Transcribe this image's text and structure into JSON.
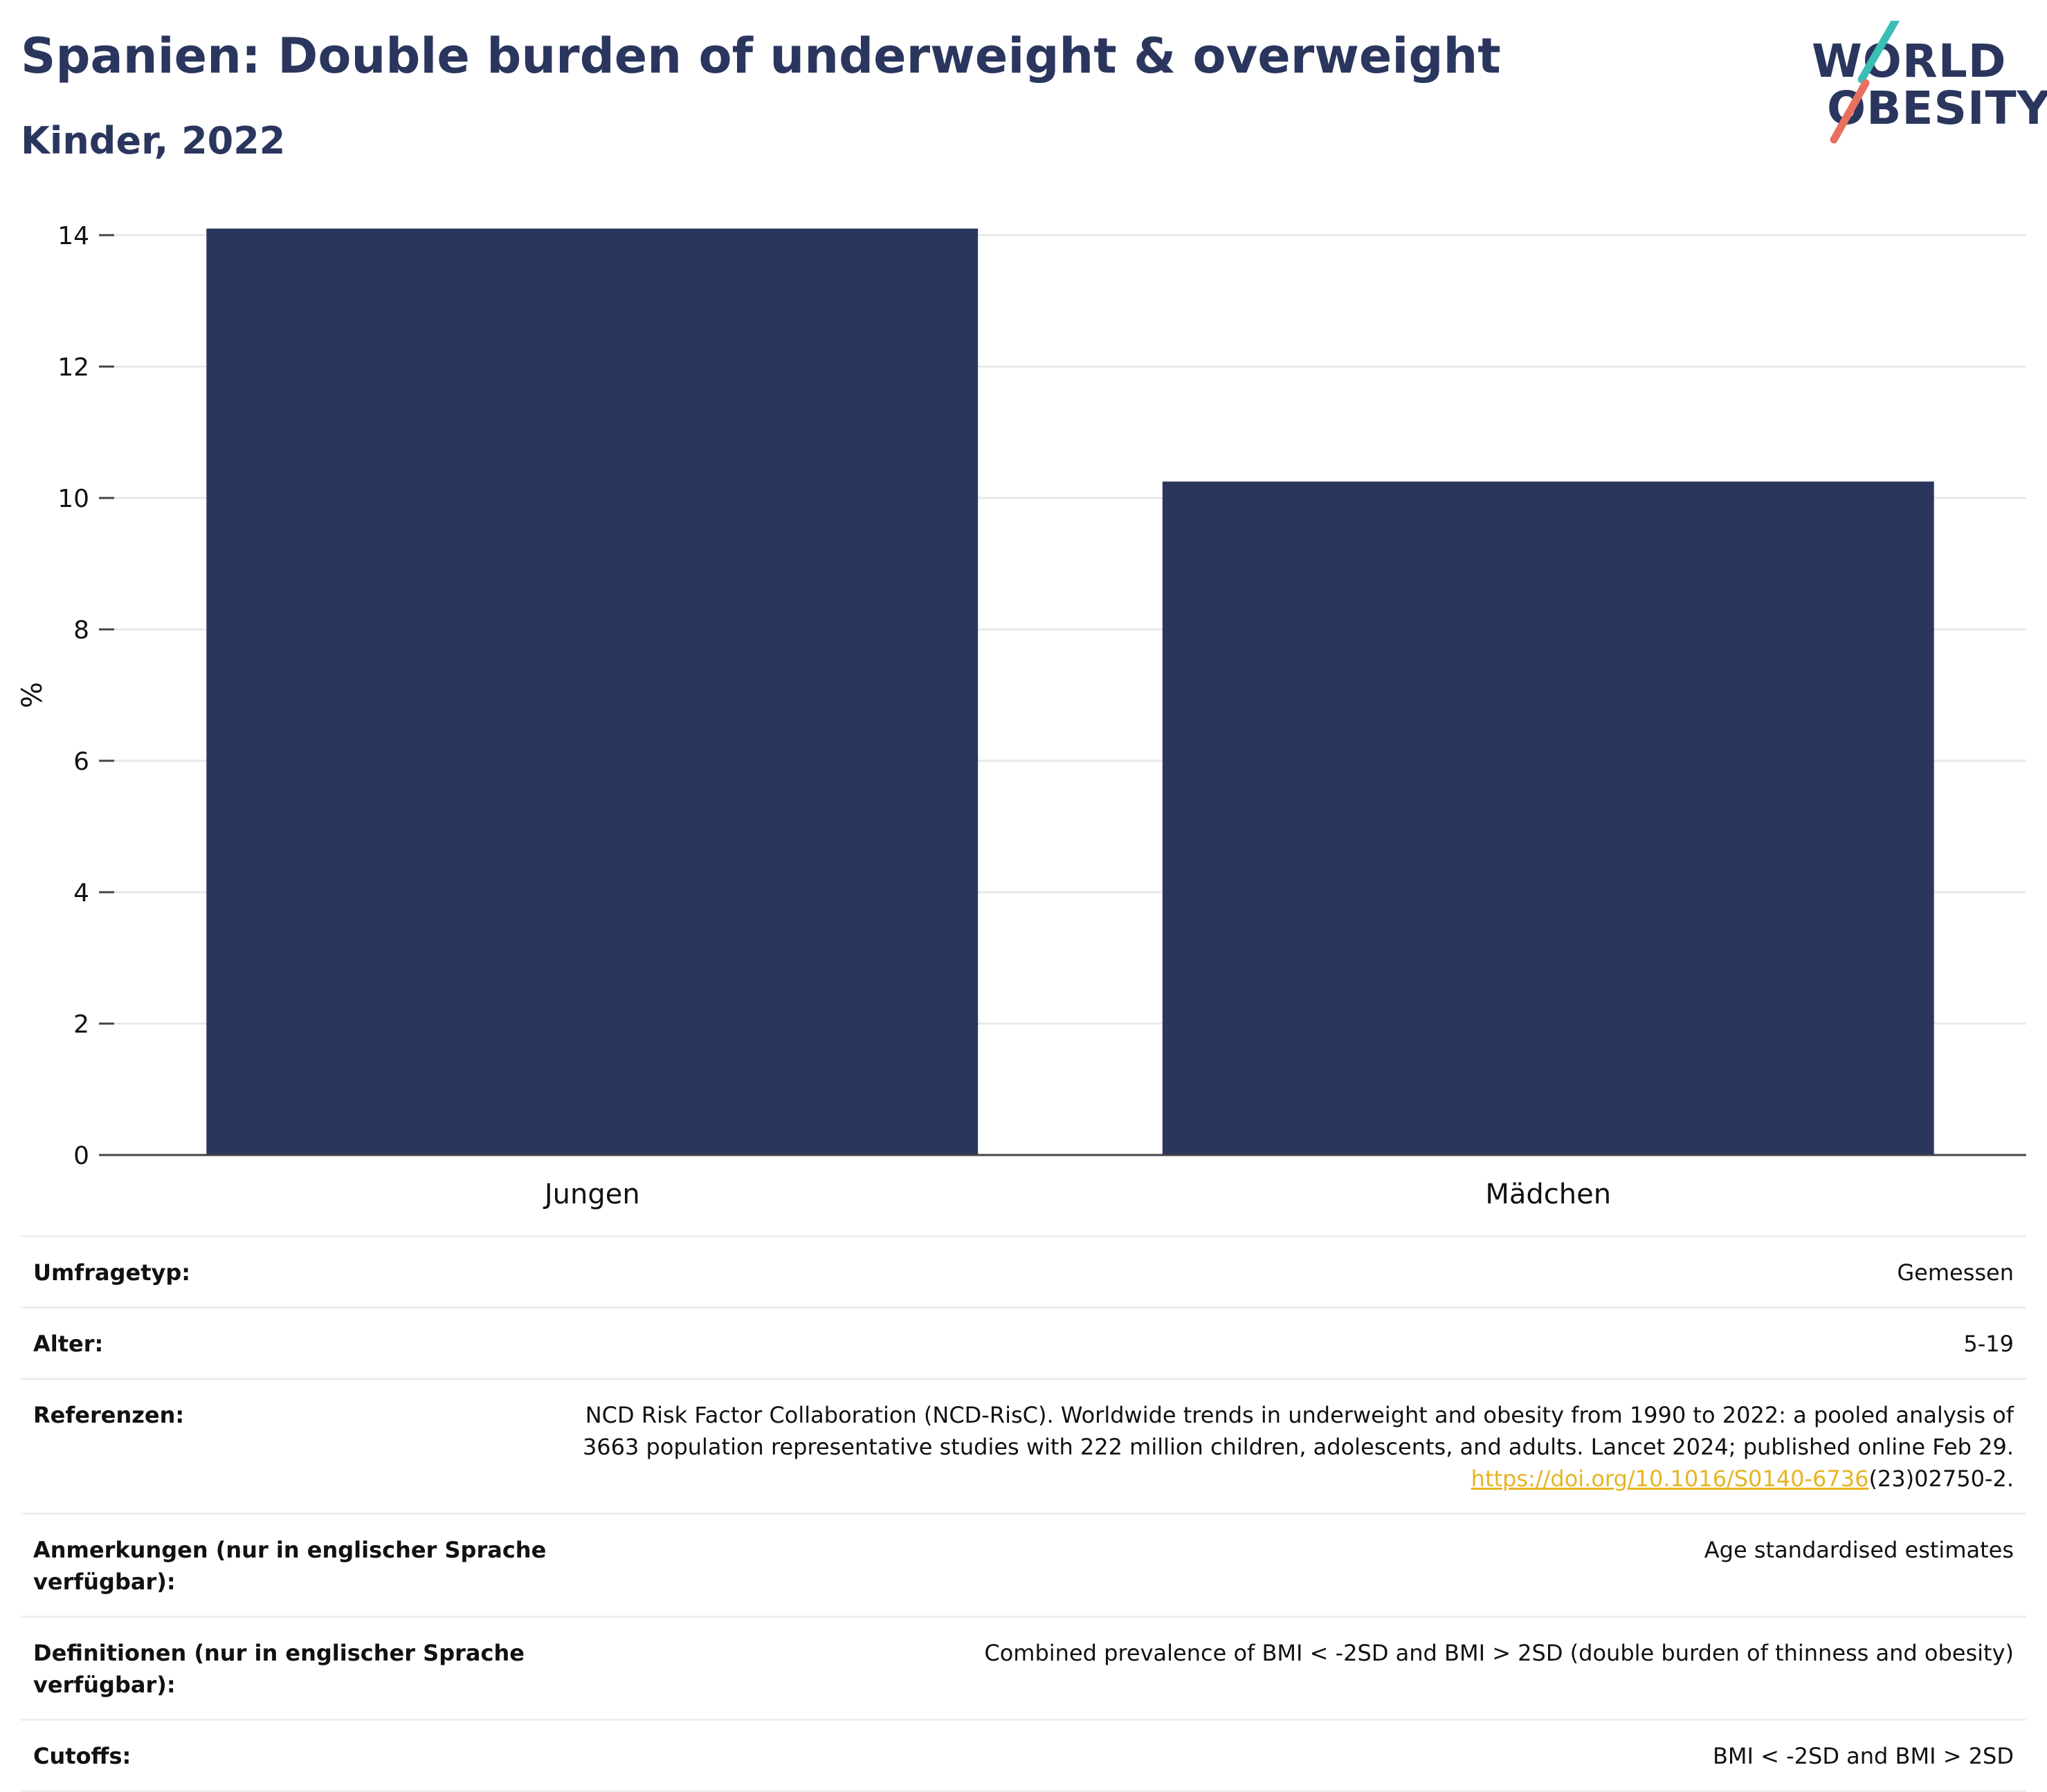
{
  "header": {
    "title": "Spanien: Double burden of underweight & overweight",
    "subtitle": "Kinder, 2022"
  },
  "logo": {
    "line1": "WORLD",
    "line2": "OBESITY",
    "colors": {
      "text": "#2b365e",
      "teal": "#3bbfb5",
      "coral": "#e8705f"
    }
  },
  "chart_data": {
    "type": "bar",
    "categories": [
      "Jungen",
      "Mädchen"
    ],
    "values": [
      14.1,
      10.25
    ],
    "title": "",
    "xlabel": "",
    "ylabel": "%",
    "ylim": [
      0,
      14
    ],
    "yticks": [
      0,
      2,
      4,
      6,
      8,
      10,
      12,
      14
    ],
    "grid": true,
    "bar_color": "#2b365e"
  },
  "meta": {
    "survey": {
      "label": "Umfragetyp:",
      "value": "Gemessen"
    },
    "age": {
      "label": "Alter:",
      "value": "5-19"
    },
    "references": {
      "label": "Referenzen:",
      "line1": "NCD Risk Factor Collaboration (NCD-RisC). Worldwide trends in underweight and obesity from 1990 to 2022: a pooled analysis of",
      "line2": "3663 population representative studies with 222 million children, adolescents, and adults. Lancet 2024; published online Feb 29.",
      "link": "https://doi.org/10.1016/S0140-6736",
      "link_suffix": "(23)02750-2."
    },
    "notes": {
      "label": "Anmerkungen (nur in englischer Sprache verfügbar):",
      "value": "Age standardised estimates"
    },
    "definitions": {
      "label": "Definitionen (nur in englischer Sprache verfügbar):",
      "value": "Combined prevalence of BMI < -2SD and BMI > 2SD (double burden of thinness and obesity)"
    },
    "cutoffs": {
      "label": "Cutoffs:",
      "value": "BMI < -2SD and BMI > 2SD"
    }
  }
}
